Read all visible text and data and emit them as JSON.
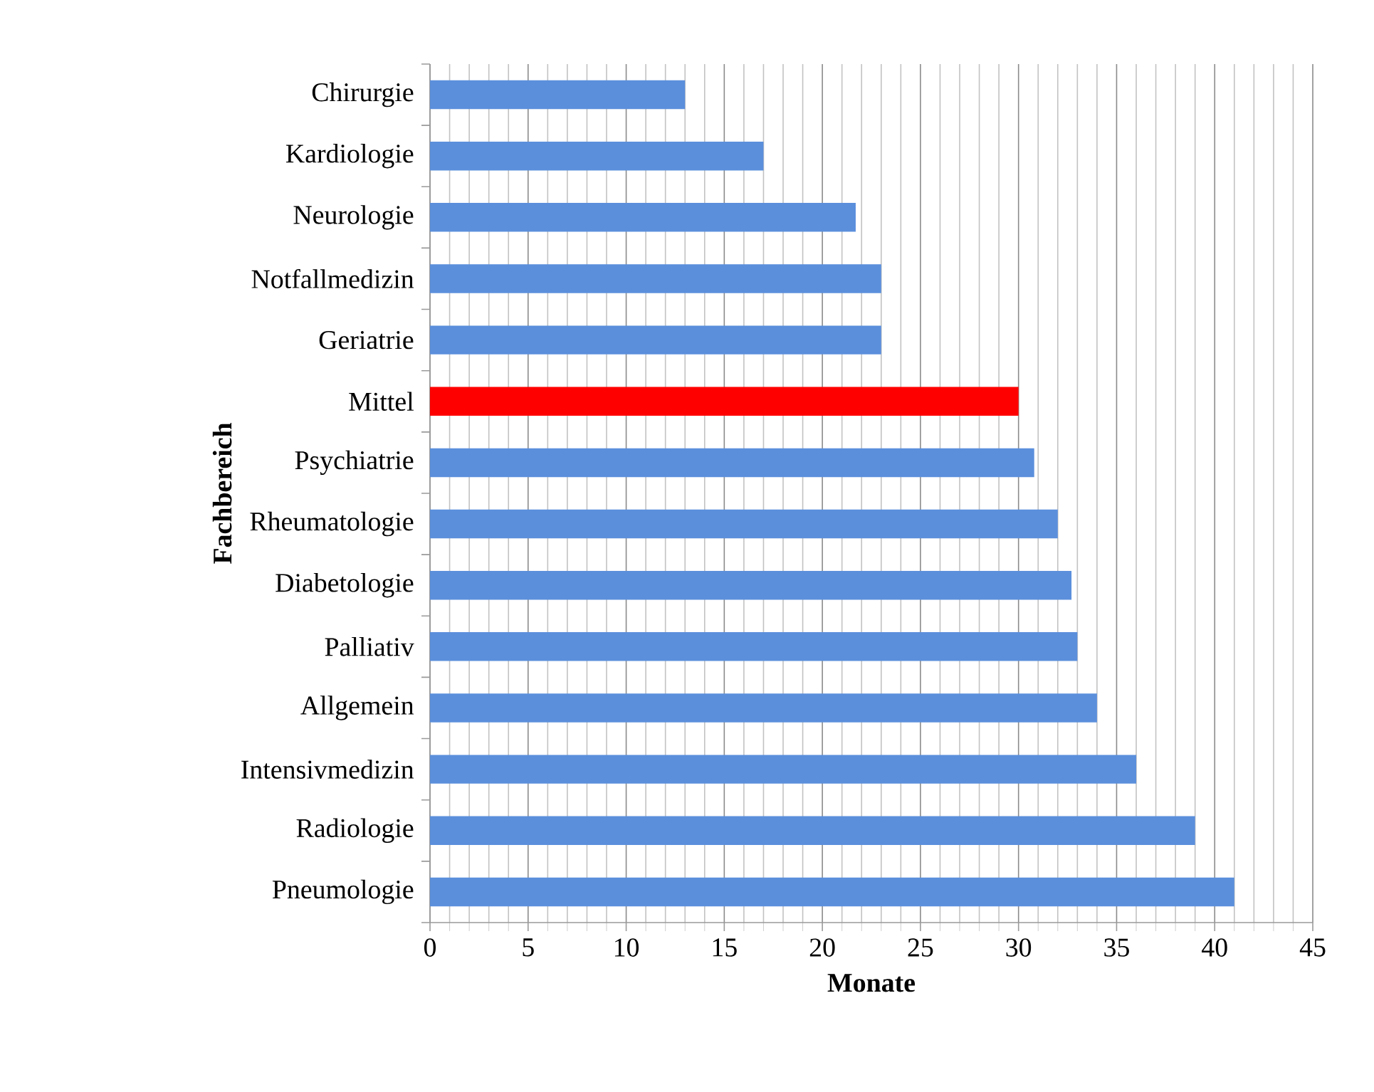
{
  "chart_data": {
    "type": "bar",
    "orientation": "horizontal",
    "categories": [
      "Chirurgie",
      "Kardiologie",
      "Neurologie",
      "Notfallmedizin",
      "Geriatrie",
      "Mittel",
      "Psychiatrie",
      "Rheumatologie",
      "Diabetologie",
      "Palliativ",
      "Allgemein",
      "Intensivmedizin",
      "Radiologie",
      "Pneumologie"
    ],
    "values": [
      13,
      17,
      21.7,
      23,
      23,
      30,
      30.8,
      32,
      32.7,
      33,
      34,
      36,
      39,
      41
    ],
    "colors": [
      "#5b8fdc",
      "#5b8fdc",
      "#5b8fdc",
      "#5b8fdc",
      "#5b8fdc",
      "#ff0000",
      "#5b8fdc",
      "#5b8fdc",
      "#5b8fdc",
      "#5b8fdc",
      "#5b8fdc",
      "#5b8fdc",
      "#5b8fdc",
      "#5b8fdc"
    ],
    "xlim": [
      0,
      45
    ],
    "xticks": [
      0,
      5,
      10,
      15,
      20,
      25,
      30,
      35,
      40,
      45
    ],
    "xlabel": "Monate",
    "ylabel": "Fachbereich",
    "grid": "x"
  }
}
